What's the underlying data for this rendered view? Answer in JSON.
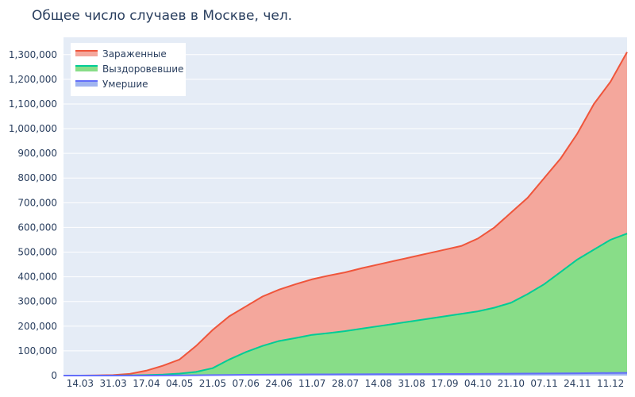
{
  "chart_data": {
    "type": "area",
    "title": "Общее число случаев в Москве, чел.",
    "xlabel": "",
    "ylabel": "",
    "grid": true,
    "legend_position": "top-left",
    "x_tick_labels": [
      "14.03",
      "31.03",
      "17.04",
      "04.05",
      "21.05",
      "07.06",
      "24.06",
      "11.07",
      "28.07",
      "14.08",
      "31.08",
      "17.09",
      "04.10",
      "21.10",
      "07.11",
      "24.11",
      "11.12"
    ],
    "y_ticks": [
      0,
      100000,
      200000,
      300000,
      400000,
      500000,
      600000,
      700000,
      800000,
      900000,
      1000000,
      1100000,
      1200000,
      1300000
    ],
    "y_tick_labels": [
      "0",
      "100,000",
      "200,000",
      "300,000",
      "400,000",
      "500,000",
      "600,000",
      "700,000",
      "800,000",
      "900,000",
      "1,000,000",
      "1,100,000",
      "1,200,000",
      "1,300,000"
    ],
    "ylim": [
      0,
      1370000
    ],
    "x": [
      "07.03",
      "14.03",
      "22.03",
      "31.03",
      "08.04",
      "17.04",
      "25.04",
      "04.05",
      "12.05",
      "21.05",
      "29.05",
      "07.06",
      "15.06",
      "24.06",
      "02.07",
      "11.07",
      "19.07",
      "28.07",
      "05.08",
      "14.08",
      "22.08",
      "31.08",
      "08.09",
      "17.09",
      "25.09",
      "04.10",
      "12.10",
      "21.10",
      "29.10",
      "07.11",
      "15.11",
      "24.11",
      "02.12",
      "11.12",
      "18.12"
    ],
    "series": [
      {
        "name": "Зараженные",
        "color": "#ef553b",
        "fill": "#f4a79c",
        "values": [
          0,
          100,
          1000,
          2000,
          7000,
          20000,
          40000,
          65000,
          120000,
          185000,
          240000,
          280000,
          320000,
          348000,
          370000,
          390000,
          405000,
          418000,
          435000,
          450000,
          465000,
          480000,
          495000,
          510000,
          525000,
          555000,
          600000,
          660000,
          720000,
          800000,
          880000,
          980000,
          1100000,
          1190000,
          1310000
        ]
      },
      {
        "name": "Выздоровевшие",
        "color": "#00cc96",
        "fill": "#88dd88",
        "values": [
          0,
          0,
          50,
          200,
          800,
          2000,
          4000,
          8000,
          15000,
          30000,
          65000,
          95000,
          120000,
          140000,
          152000,
          165000,
          172000,
          180000,
          190000,
          200000,
          210000,
          220000,
          230000,
          240000,
          250000,
          260000,
          275000,
          295000,
          330000,
          370000,
          420000,
          470000,
          510000,
          550000,
          575000
        ]
      },
      {
        "name": "Умершие",
        "color": "#636efa",
        "fill": "#a0b4f0",
        "values": [
          0,
          0,
          5,
          15,
          50,
          150,
          400,
          700,
          1200,
          2000,
          2600,
          3100,
          3700,
          4200,
          4500,
          4700,
          4900,
          5100,
          5300,
          5500,
          5700,
          5900,
          6100,
          6300,
          6500,
          6800,
          7200,
          7600,
          8000,
          8400,
          8900,
          9400,
          9900,
          10400,
          11000
        ]
      }
    ]
  },
  "colors": {
    "plot_background": "#e5ecf6",
    "grid": "#ffffff",
    "text": "#2a3f5f"
  }
}
